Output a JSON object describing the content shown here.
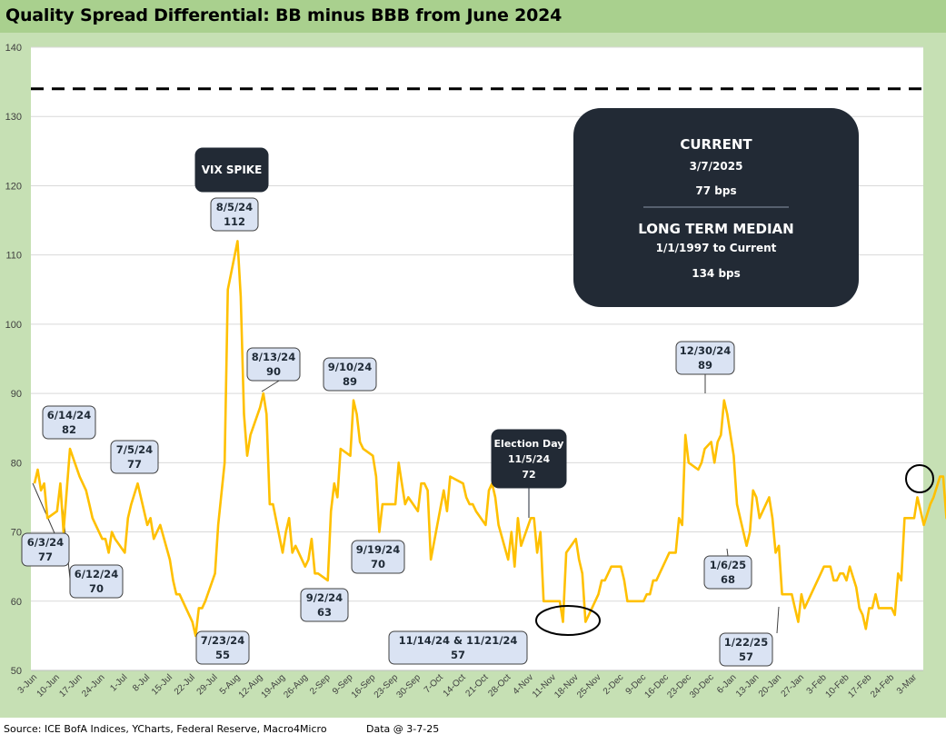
{
  "title": "Quality Spread Differential: BB minus BBB from June 2024",
  "footer": {
    "source": "Source: ICE BofA Indices, YCharts, Federal Reserve, Macro4Micro",
    "data_date": "Data @ 3-7-25"
  },
  "info_box": {
    "current_label": "CURRENT",
    "current_date": "3/7/2025",
    "current_value": "77 bps",
    "median_label": "LONG TERM MEDIAN",
    "median_range": "1/1/1997 to Current",
    "median_value": "134 bps"
  },
  "colors": {
    "line": "#ffc000",
    "frame": "#c6e0b4",
    "title_bar": "#a9d08e",
    "callout_fill": "#dae3f3",
    "dark_box": "#222a35"
  },
  "chart_data": {
    "type": "line",
    "ylim": [
      50,
      140
    ],
    "yticks": [
      50,
      60,
      70,
      80,
      90,
      100,
      110,
      120,
      130,
      140
    ],
    "grid": true,
    "x_tick_labels": [
      "3-Jun",
      "10-Jun",
      "17-Jun",
      "24-Jun",
      "1-Jul",
      "8-Jul",
      "15-Jul",
      "22-Jul",
      "29-Jul",
      "5-Aug",
      "12-Aug",
      "19-Aug",
      "26-Aug",
      "2-Sep",
      "9-Sep",
      "16-Sep",
      "23-Sep",
      "30-Sep",
      "7-Oct",
      "14-Oct",
      "21-Oct",
      "28-Oct",
      "4-Nov",
      "11-Nov",
      "18-Nov",
      "25-Nov",
      "2-Dec",
      "9-Dec",
      "16-Dec",
      "23-Dec",
      "30-Dec",
      "6-Jan",
      "13-Jan",
      "20-Jan",
      "27-Jan",
      "3-Feb",
      "10-Feb",
      "17-Feb",
      "24-Feb",
      "3-Mar"
    ],
    "x_range_days": [
      0,
      280
    ],
    "reference_line": {
      "value": 134,
      "style": "dashed"
    },
    "series": [
      {
        "values": [
          [
            0,
            77
          ],
          [
            1,
            79
          ],
          [
            2,
            76
          ],
          [
            3,
            77
          ],
          [
            4,
            72
          ],
          [
            7,
            73
          ],
          [
            8,
            77
          ],
          [
            9,
            70
          ],
          [
            11,
            82
          ],
          [
            14,
            78
          ],
          [
            16,
            76
          ],
          [
            17,
            74
          ],
          [
            18,
            72
          ],
          [
            21,
            69
          ],
          [
            22,
            69
          ],
          [
            23,
            67
          ],
          [
            24,
            70
          ],
          [
            25,
            69
          ],
          [
            28,
            67
          ],
          [
            29,
            72
          ],
          [
            30,
            74
          ],
          [
            32,
            77
          ],
          [
            35,
            71
          ],
          [
            36,
            72
          ],
          [
            37,
            69
          ],
          [
            38,
            70
          ],
          [
            39,
            71
          ],
          [
            42,
            66
          ],
          [
            43,
            63
          ],
          [
            44,
            61
          ],
          [
            45,
            61
          ],
          [
            46,
            60
          ],
          [
            49,
            57
          ],
          [
            50,
            55
          ],
          [
            51,
            59
          ],
          [
            52,
            59
          ],
          [
            53,
            60
          ],
          [
            56,
            64
          ],
          [
            57,
            71
          ],
          [
            59,
            80
          ],
          [
            60,
            105
          ],
          [
            63,
            112
          ],
          [
            64,
            104
          ],
          [
            65,
            87
          ],
          [
            66,
            81
          ],
          [
            67,
            84
          ],
          [
            70,
            88
          ],
          [
            71,
            90
          ],
          [
            72,
            87
          ],
          [
            73,
            74
          ],
          [
            74,
            74
          ],
          [
            77,
            67
          ],
          [
            78,
            70
          ],
          [
            79,
            72
          ],
          [
            80,
            67
          ],
          [
            81,
            68
          ],
          [
            84,
            65
          ],
          [
            85,
            66
          ],
          [
            86,
            69
          ],
          [
            87,
            64
          ],
          [
            88,
            64
          ],
          [
            91,
            63
          ],
          [
            92,
            73
          ],
          [
            93,
            77
          ],
          [
            94,
            75
          ],
          [
            95,
            82
          ],
          [
            98,
            81
          ],
          [
            99,
            89
          ],
          [
            100,
            87
          ],
          [
            101,
            83
          ],
          [
            102,
            82
          ],
          [
            105,
            81
          ],
          [
            106,
            78
          ],
          [
            107,
            70
          ],
          [
            108,
            74
          ],
          [
            112,
            74
          ],
          [
            113,
            80
          ],
          [
            114,
            77
          ],
          [
            115,
            74
          ],
          [
            116,
            75
          ],
          [
            119,
            73
          ],
          [
            120,
            77
          ],
          [
            121,
            77
          ],
          [
            122,
            76
          ],
          [
            123,
            66
          ],
          [
            127,
            76
          ],
          [
            128,
            73
          ],
          [
            129,
            78
          ],
          [
            133,
            77
          ],
          [
            134,
            75
          ],
          [
            135,
            74
          ],
          [
            136,
            74
          ],
          [
            137,
            73
          ],
          [
            140,
            71
          ],
          [
            141,
            76
          ],
          [
            142,
            77
          ],
          [
            143,
            75
          ],
          [
            144,
            71
          ],
          [
            147,
            66
          ],
          [
            148,
            70
          ],
          [
            149,
            65
          ],
          [
            150,
            72
          ],
          [
            151,
            68
          ],
          [
            154,
            72
          ],
          [
            155,
            72
          ],
          [
            156,
            67
          ],
          [
            157,
            70
          ],
          [
            158,
            60
          ],
          [
            161,
            60
          ],
          [
            162,
            60
          ],
          [
            163,
            60
          ],
          [
            164,
            57
          ],
          [
            165,
            67
          ],
          [
            168,
            69
          ],
          [
            169,
            66
          ],
          [
            170,
            64
          ],
          [
            171,
            57
          ],
          [
            172,
            58
          ],
          [
            175,
            61
          ],
          [
            176,
            63
          ],
          [
            177,
            63
          ],
          [
            178,
            64
          ],
          [
            179,
            65
          ],
          [
            182,
            65
          ],
          [
            183,
            63
          ],
          [
            184,
            60
          ],
          [
            185,
            60
          ],
          [
            186,
            60
          ],
          [
            189,
            60
          ],
          [
            190,
            61
          ],
          [
            191,
            61
          ],
          [
            192,
            63
          ],
          [
            193,
            63
          ],
          [
            196,
            66
          ],
          [
            197,
            67
          ],
          [
            198,
            67
          ],
          [
            199,
            67
          ],
          [
            200,
            72
          ],
          [
            201,
            71
          ],
          [
            202,
            84
          ],
          [
            203,
            80
          ],
          [
            206,
            79
          ],
          [
            207,
            80
          ],
          [
            208,
            82
          ],
          [
            210,
            83
          ],
          [
            211,
            80
          ],
          [
            212,
            83
          ],
          [
            213,
            84
          ],
          [
            214,
            89
          ],
          [
            215,
            87
          ],
          [
            217,
            81
          ],
          [
            218,
            74
          ],
          [
            219,
            72
          ],
          [
            221,
            68
          ],
          [
            222,
            70
          ],
          [
            223,
            76
          ],
          [
            224,
            75
          ],
          [
            225,
            72
          ],
          [
            228,
            75
          ],
          [
            229,
            72
          ],
          [
            230,
            67
          ],
          [
            231,
            68
          ],
          [
            232,
            61
          ],
          [
            235,
            61
          ],
          [
            236,
            59
          ],
          [
            237,
            57
          ],
          [
            238,
            61
          ],
          [
            239,
            59
          ],
          [
            241,
            61
          ],
          [
            244,
            64
          ],
          [
            245,
            65
          ],
          [
            247,
            65
          ],
          [
            248,
            63
          ],
          [
            249,
            63
          ],
          [
            250,
            64
          ],
          [
            251,
            64
          ],
          [
            252,
            63
          ],
          [
            253,
            65
          ],
          [
            255,
            62
          ],
          [
            256,
            59
          ],
          [
            257,
            58
          ],
          [
            258,
            56
          ],
          [
            259,
            59
          ],
          [
            260,
            59
          ],
          [
            261,
            61
          ],
          [
            262,
            59
          ],
          [
            263,
            59
          ],
          [
            266,
            59
          ],
          [
            267,
            58
          ],
          [
            268,
            64
          ],
          [
            269,
            63
          ],
          [
            270,
            72
          ],
          [
            273,
            72
          ],
          [
            274,
            75
          ],
          [
            275,
            73
          ],
          [
            276,
            71
          ],
          [
            278,
            74
          ],
          [
            279,
            75
          ],
          [
            281,
            78
          ],
          [
            282,
            78
          ],
          [
            283,
            72
          ],
          [
            284,
            80
          ],
          [
            285,
            77
          ]
        ]
      }
    ],
    "annotations": [
      {
        "lines": [
          "6/3/24",
          "77"
        ],
        "x": 0,
        "y": 77,
        "style": "callout"
      },
      {
        "lines": [
          "6/12/24",
          "70"
        ],
        "x": 9,
        "y": 70,
        "style": "callout"
      },
      {
        "lines": [
          "6/14/24",
          "82"
        ],
        "x": 11,
        "y": 82,
        "style": "callout"
      },
      {
        "lines": [
          "7/5/24",
          "77"
        ],
        "x": 32,
        "y": 77,
        "style": "callout"
      },
      {
        "lines": [
          "7/23/24",
          "55"
        ],
        "x": 50,
        "y": 55,
        "style": "callout"
      },
      {
        "lines": [
          "8/5/24",
          "112"
        ],
        "x": 63,
        "y": 112,
        "style": "callout"
      },
      {
        "lines": [
          "VIX SPIKE"
        ],
        "style": "dark"
      },
      {
        "lines": [
          "8/13/24",
          "90"
        ],
        "x": 71,
        "y": 90,
        "style": "callout"
      },
      {
        "lines": [
          "9/2/24",
          "63"
        ],
        "x": 91,
        "y": 63,
        "style": "callout"
      },
      {
        "lines": [
          "9/10/24",
          "89"
        ],
        "x": 99,
        "y": 89,
        "style": "callout"
      },
      {
        "lines": [
          "9/19/24",
          "70"
        ],
        "x": 107,
        "y": 70,
        "style": "callout"
      },
      {
        "lines": [
          "Election Day",
          "11/5/24",
          "72"
        ],
        "x": 155,
        "y": 72,
        "style": "dark"
      },
      {
        "lines": [
          "11/14/24 & 11/21/24",
          "57"
        ],
        "x": 164,
        "y": 57,
        "style": "callout"
      },
      {
        "lines": [
          "12/30/24",
          "89"
        ],
        "x": 214,
        "y": 89,
        "style": "callout"
      },
      {
        "lines": [
          "1/6/25",
          "68"
        ],
        "x": 221,
        "y": 68,
        "style": "callout"
      },
      {
        "lines": [
          "1/22/25",
          "57"
        ],
        "x": 237,
        "y": 57,
        "style": "callout"
      }
    ]
  }
}
